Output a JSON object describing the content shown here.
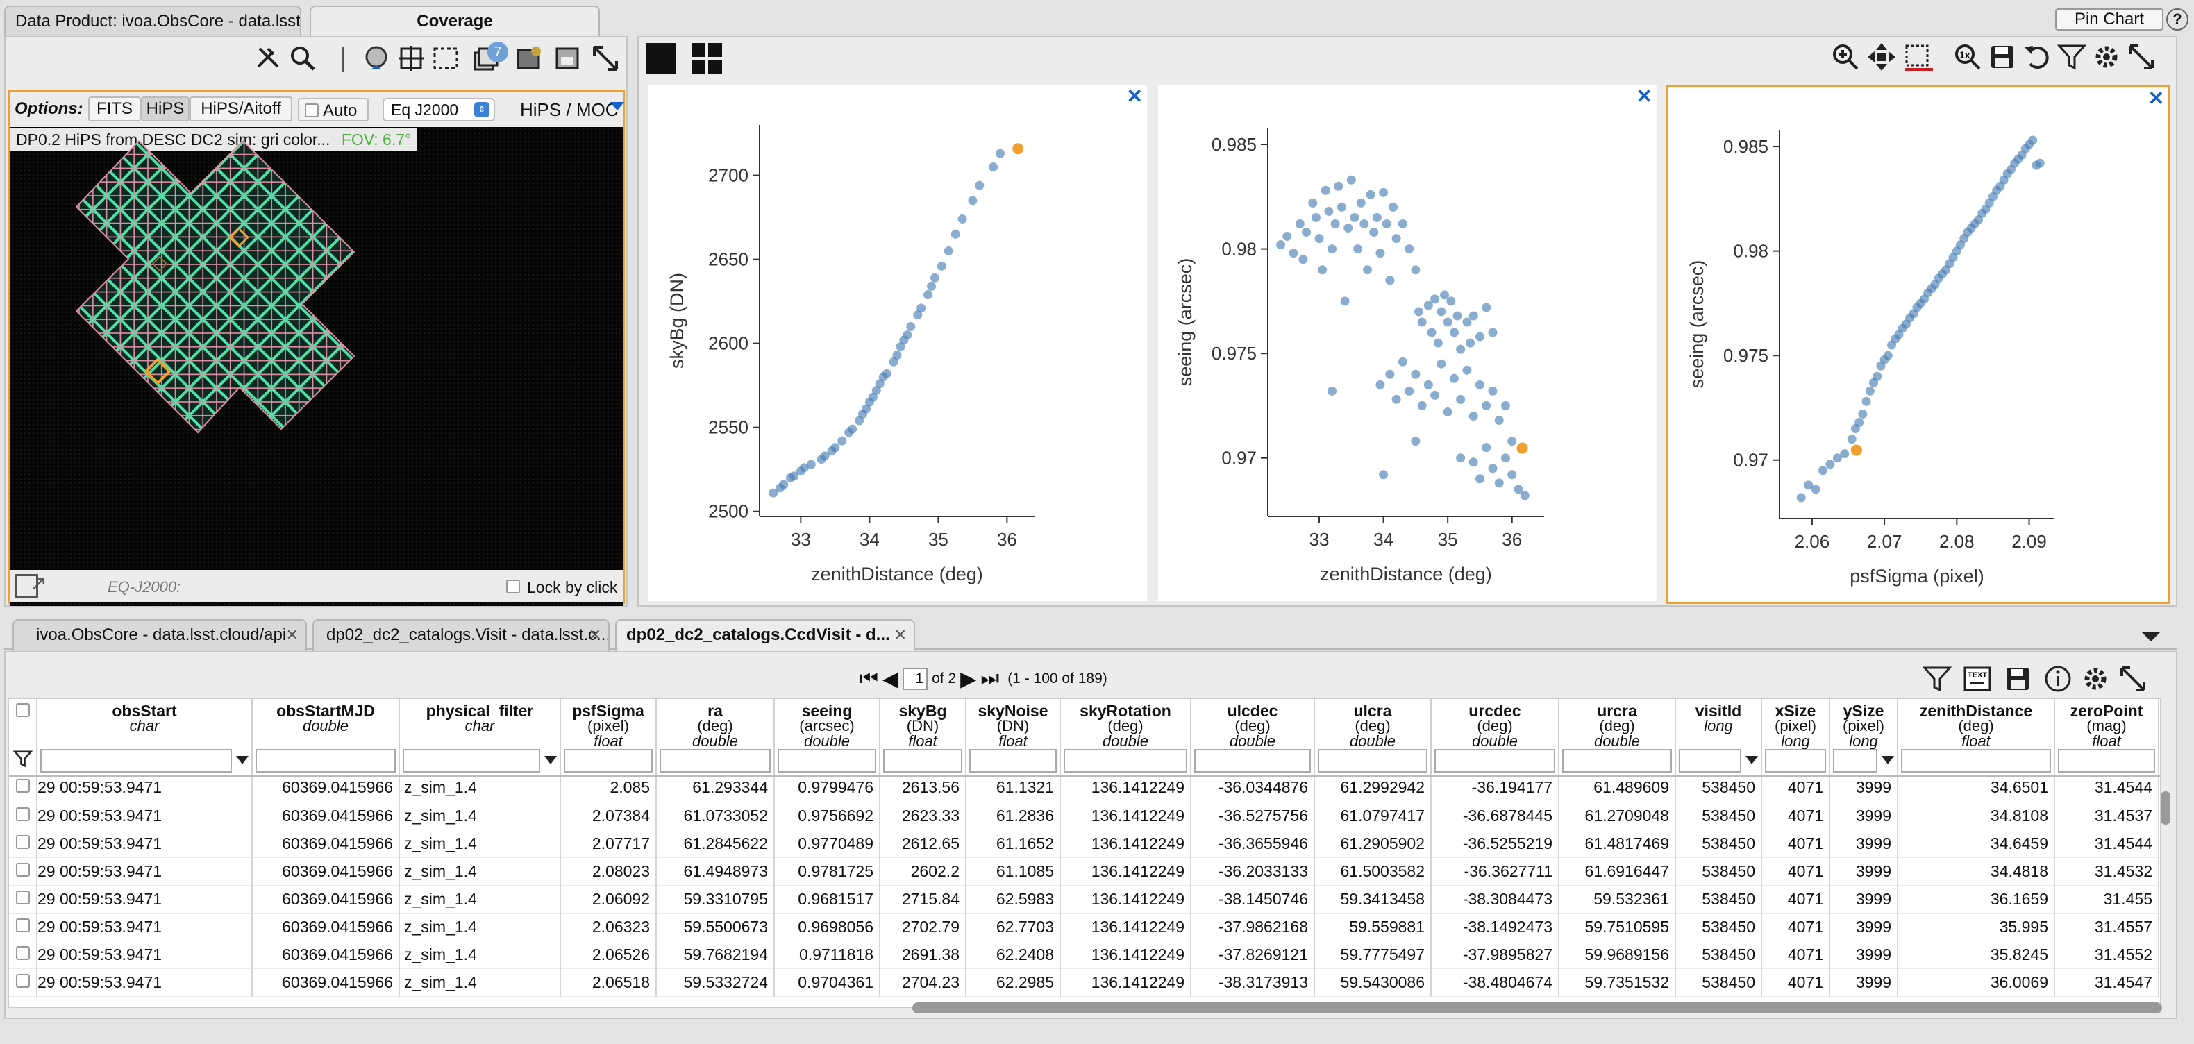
{
  "top_tabs": [
    {
      "label": "Data Product: ivoa.ObsCore - data.lsst.cloud/api"
    },
    {
      "label": "Coverage"
    }
  ],
  "top_right": {
    "pin_chart": "Pin Chart",
    "help": "?"
  },
  "coverage": {
    "options_label": "Options:",
    "option_buttons": [
      "FITS",
      "HiPS",
      "HiPS/Aitoff"
    ],
    "auto_label": "Auto",
    "projection": "Eq J2000",
    "hips_moc": "HiPS / MOC",
    "layer_title": "DP0.2 HiPS from DESC DC2 sim: gri color...",
    "fov": "FOV: 6.7°",
    "coord_label": "EQ-J2000:",
    "lock_label": "Lock by click",
    "badge": "7"
  },
  "charts": [
    {
      "chart_data": {
        "type": "scatter",
        "xlabel": "zenithDistance (deg)",
        "ylabel": "skyBg (DN)",
        "xlim": [
          32.4,
          36.4
        ],
        "ylim": [
          2497,
          2730
        ],
        "xticks": [
          33,
          34,
          35,
          36
        ],
        "yticks": [
          2500,
          2550,
          2600,
          2650,
          2700
        ],
        "ytick_labels": [
          "2500",
          "2550",
          "2600",
          "2650",
          "2700"
        ],
        "points": [
          [
            32.6,
            2511
          ],
          [
            32.7,
            2514
          ],
          [
            32.75,
            2516
          ],
          [
            32.85,
            2520
          ],
          [
            32.9,
            2521
          ],
          [
            33.0,
            2524
          ],
          [
            33.05,
            2526
          ],
          [
            33.15,
            2528
          ],
          [
            33.3,
            2531
          ],
          [
            33.35,
            2533
          ],
          [
            33.45,
            2536
          ],
          [
            33.5,
            2538
          ],
          [
            33.6,
            2542
          ],
          [
            33.7,
            2547
          ],
          [
            33.75,
            2549
          ],
          [
            33.85,
            2554
          ],
          [
            33.9,
            2558
          ],
          [
            33.95,
            2561
          ],
          [
            34.0,
            2565
          ],
          [
            34.05,
            2568
          ],
          [
            34.1,
            2572
          ],
          [
            34.15,
            2576
          ],
          [
            34.2,
            2580
          ],
          [
            34.25,
            2582
          ],
          [
            34.35,
            2589
          ],
          [
            34.4,
            2593
          ],
          [
            34.45,
            2598
          ],
          [
            34.5,
            2602
          ],
          [
            34.55,
            2605
          ],
          [
            34.6,
            2610
          ],
          [
            34.7,
            2617
          ],
          [
            34.75,
            2621
          ],
          [
            34.85,
            2629
          ],
          [
            34.9,
            2634
          ],
          [
            34.95,
            2639
          ],
          [
            35.05,
            2646
          ],
          [
            35.15,
            2655
          ],
          [
            35.25,
            2665
          ],
          [
            35.35,
            2674
          ],
          [
            35.5,
            2685
          ],
          [
            35.6,
            2694
          ],
          [
            35.8,
            2705
          ],
          [
            35.9,
            2713
          ]
        ],
        "highlight": [
          36.16,
          2715.84
        ]
      }
    },
    {
      "chart_data": {
        "type": "scatter",
        "xlabel": "zenithDistance (deg)",
        "ylabel": "seeing (arcsec)",
        "xlim": [
          32.2,
          36.5
        ],
        "ylim": [
          0.9672,
          0.9858
        ],
        "xticks": [
          33,
          34,
          35,
          36
        ],
        "yticks": [
          0.97,
          0.975,
          0.98,
          0.985
        ],
        "ytick_labels": [
          "0.97",
          "0.975",
          "0.98",
          "0.985"
        ],
        "points": [
          [
            32.4,
            0.9802
          ],
          [
            32.5,
            0.9806
          ],
          [
            32.6,
            0.9798
          ],
          [
            32.7,
            0.9812
          ],
          [
            32.75,
            0.9795
          ],
          [
            32.8,
            0.9808
          ],
          [
            32.9,
            0.9822
          ],
          [
            32.95,
            0.9815
          ],
          [
            33.0,
            0.9805
          ],
          [
            33.05,
            0.979
          ],
          [
            33.1,
            0.9828
          ],
          [
            33.15,
            0.9818
          ],
          [
            33.2,
            0.98
          ],
          [
            33.25,
            0.9812
          ],
          [
            33.3,
            0.983
          ],
          [
            33.35,
            0.982
          ],
          [
            33.4,
            0.9775
          ],
          [
            33.45,
            0.981
          ],
          [
            33.5,
            0.9833
          ],
          [
            33.55,
            0.9815
          ],
          [
            33.6,
            0.98
          ],
          [
            33.65,
            0.9822
          ],
          [
            33.7,
            0.9812
          ],
          [
            33.75,
            0.979
          ],
          [
            33.8,
            0.9826
          ],
          [
            33.85,
            0.9808
          ],
          [
            33.9,
            0.9815
          ],
          [
            33.95,
            0.9798
          ],
          [
            34.0,
            0.9827
          ],
          [
            34.05,
            0.9812
          ],
          [
            34.1,
            0.9785
          ],
          [
            34.15,
            0.982
          ],
          [
            34.2,
            0.9805
          ],
          [
            34.3,
            0.9812
          ],
          [
            34.4,
            0.98
          ],
          [
            34.5,
            0.979
          ],
          [
            34.55,
            0.977
          ],
          [
            34.6,
            0.9765
          ],
          [
            34.7,
            0.9773
          ],
          [
            34.75,
            0.976
          ],
          [
            34.8,
            0.9776
          ],
          [
            34.85,
            0.9755
          ],
          [
            34.9,
            0.977
          ],
          [
            34.95,
            0.9778
          ],
          [
            35.0,
            0.9765
          ],
          [
            35.05,
            0.9775
          ],
          [
            35.1,
            0.976
          ],
          [
            35.15,
            0.9768
          ],
          [
            35.2,
            0.9752
          ],
          [
            35.3,
            0.9765
          ],
          [
            35.35,
            0.9755
          ],
          [
            35.4,
            0.9768
          ],
          [
            35.5,
            0.9758
          ],
          [
            35.6,
            0.9772
          ],
          [
            35.7,
            0.976
          ],
          [
            33.95,
            0.9735
          ],
          [
            34.1,
            0.974
          ],
          [
            34.2,
            0.9728
          ],
          [
            34.3,
            0.9746
          ],
          [
            34.4,
            0.9732
          ],
          [
            34.5,
            0.974
          ],
          [
            34.6,
            0.9725
          ],
          [
            34.7,
            0.9735
          ],
          [
            34.8,
            0.973
          ],
          [
            34.9,
            0.9745
          ],
          [
            35.0,
            0.9722
          ],
          [
            35.1,
            0.9738
          ],
          [
            35.2,
            0.9728
          ],
          [
            35.3,
            0.9742
          ],
          [
            35.4,
            0.972
          ],
          [
            35.5,
            0.9735
          ],
          [
            35.6,
            0.9725
          ],
          [
            35.7,
            0.9732
          ],
          [
            35.8,
            0.9718
          ],
          [
            35.9,
            0.9725
          ],
          [
            36.0,
            0.9708
          ],
          [
            35.2,
            0.97
          ],
          [
            35.4,
            0.9698
          ],
          [
            35.5,
            0.969
          ],
          [
            35.6,
            0.9705
          ],
          [
            35.7,
            0.9695
          ],
          [
            35.8,
            0.9688
          ],
          [
            35.9,
            0.97
          ],
          [
            36.0,
            0.9692
          ],
          [
            36.1,
            0.9685
          ],
          [
            36.2,
            0.9682
          ],
          [
            34.0,
            0.9692
          ],
          [
            34.5,
            0.9708
          ],
          [
            33.2,
            0.9732
          ]
        ],
        "highlight": [
          36.16,
          0.97047
        ]
      }
    },
    {
      "chart_data": {
        "type": "scatter",
        "xlabel": "psfSigma (pixel)",
        "ylabel": "seeing (arcsec)",
        "xlim": [
          2.0555,
          2.0935
        ],
        "ylim": [
          0.9672,
          0.9858
        ],
        "xticks": [
          2.06,
          2.07,
          2.08,
          2.09
        ],
        "yticks": [
          0.97,
          0.975,
          0.98,
          0.985
        ],
        "ytick_labels": [
          "0.97",
          "0.975",
          "0.98",
          "0.985"
        ],
        "points": [
          [
            2.0585,
            0.9682
          ],
          [
            2.0595,
            0.9688
          ],
          [
            2.0605,
            0.9686
          ],
          [
            2.0615,
            0.9695
          ],
          [
            2.0625,
            0.9698
          ],
          [
            2.0635,
            0.9701
          ],
          [
            2.0645,
            0.9703
          ],
          [
            2.0655,
            0.971
          ],
          [
            2.066,
            0.9715
          ],
          [
            2.0665,
            0.9718
          ],
          [
            2.067,
            0.9722
          ],
          [
            2.0675,
            0.9728
          ],
          [
            2.068,
            0.9733
          ],
          [
            2.0685,
            0.9737
          ],
          [
            2.069,
            0.974
          ],
          [
            2.0695,
            0.9745
          ],
          [
            2.07,
            0.9748
          ],
          [
            2.0705,
            0.975
          ],
          [
            2.071,
            0.9755
          ],
          [
            2.0715,
            0.9758
          ],
          [
            2.072,
            0.976
          ],
          [
            2.0725,
            0.9763
          ],
          [
            2.073,
            0.9765
          ],
          [
            2.0735,
            0.9768
          ],
          [
            2.074,
            0.977
          ],
          [
            2.0745,
            0.9773
          ],
          [
            2.075,
            0.9775
          ],
          [
            2.0755,
            0.9777
          ],
          [
            2.076,
            0.978
          ],
          [
            2.0765,
            0.9782
          ],
          [
            2.077,
            0.9784
          ],
          [
            2.0775,
            0.9787
          ],
          [
            2.078,
            0.9789
          ],
          [
            2.0785,
            0.9791
          ],
          [
            2.079,
            0.9794
          ],
          [
            2.0795,
            0.9797
          ],
          [
            2.08,
            0.98
          ],
          [
            2.0805,
            0.9803
          ],
          [
            2.081,
            0.9806
          ],
          [
            2.0815,
            0.9809
          ],
          [
            2.082,
            0.9811
          ],
          [
            2.0825,
            0.9813
          ],
          [
            2.083,
            0.9815
          ],
          [
            2.0835,
            0.9818
          ],
          [
            2.084,
            0.982
          ],
          [
            2.0845,
            0.9823
          ],
          [
            2.085,
            0.9826
          ],
          [
            2.0855,
            0.9829
          ],
          [
            2.086,
            0.9831
          ],
          [
            2.0865,
            0.9834
          ],
          [
            2.087,
            0.9837
          ],
          [
            2.0875,
            0.9839
          ],
          [
            2.088,
            0.9842
          ],
          [
            2.0885,
            0.9844
          ],
          [
            2.089,
            0.9846
          ],
          [
            2.0895,
            0.9849
          ],
          [
            2.09,
            0.9851
          ],
          [
            2.0905,
            0.9853
          ],
          [
            2.091,
            0.9841
          ],
          [
            2.0915,
            0.9842
          ]
        ],
        "highlight": [
          2.06614,
          0.97047
        ]
      }
    }
  ],
  "bottom_tabs": [
    {
      "label": "ivoa.ObsCore - data.lsst.cloud/api"
    },
    {
      "label": "dp02_dc2_catalogs.Visit - data.lsst.c..."
    },
    {
      "label": "dp02_dc2_catalogs.CcdVisit - d..."
    }
  ],
  "paging": {
    "page": "1",
    "of": "of 2",
    "range": "(1 - 100 of 189)"
  },
  "table": {
    "columns": [
      {
        "name": "obsStart",
        "unit": "",
        "type": "char"
      },
      {
        "name": "obsStartMJD",
        "unit": "",
        "type": "double"
      },
      {
        "name": "physical_filter",
        "unit": "",
        "type": "char"
      },
      {
        "name": "psfSigma",
        "unit": "(pixel)",
        "type": "float"
      },
      {
        "name": "ra",
        "unit": "(deg)",
        "type": "double"
      },
      {
        "name": "seeing",
        "unit": "(arcsec)",
        "type": "double"
      },
      {
        "name": "skyBg",
        "unit": "(DN)",
        "type": "float"
      },
      {
        "name": "skyNoise",
        "unit": "(DN)",
        "type": "float"
      },
      {
        "name": "skyRotation",
        "unit": "(deg)",
        "type": "double"
      },
      {
        "name": "ulcdec",
        "unit": "(deg)",
        "type": "double"
      },
      {
        "name": "ulcra",
        "unit": "(deg)",
        "type": "double"
      },
      {
        "name": "urcdec",
        "unit": "(deg)",
        "type": "double"
      },
      {
        "name": "urcra",
        "unit": "(deg)",
        "type": "double"
      },
      {
        "name": "visitId",
        "unit": "",
        "type": "long"
      },
      {
        "name": "xSize",
        "unit": "(pixel)",
        "type": "long"
      },
      {
        "name": "ySize",
        "unit": "(pixel)",
        "type": "long"
      },
      {
        "name": "zenithDistance",
        "unit": "(deg)",
        "type": "float"
      },
      {
        "name": "zeroPoint",
        "unit": "(mag)",
        "type": "float"
      }
    ],
    "rows": [
      [
        "29 00:59:53.9471",
        "60369.0415966",
        "z_sim_1.4",
        "2.085",
        "61.293344",
        "0.9799476",
        "2613.56",
        "61.1321",
        "136.1412249",
        "-36.0344876",
        "61.2992942",
        "-36.194177",
        "61.489609",
        "538450",
        "4071",
        "3999",
        "34.6501",
        "31.4544"
      ],
      [
        "29 00:59:53.9471",
        "60369.0415966",
        "z_sim_1.4",
        "2.07384",
        "61.0733052",
        "0.9756692",
        "2623.33",
        "61.2836",
        "136.1412249",
        "-36.5275756",
        "61.0797417",
        "-36.6878445",
        "61.2709048",
        "538450",
        "4071",
        "3999",
        "34.8108",
        "31.4537"
      ],
      [
        "29 00:59:53.9471",
        "60369.0415966",
        "z_sim_1.4",
        "2.07717",
        "61.2845622",
        "0.9770489",
        "2612.65",
        "61.1652",
        "136.1412249",
        "-36.3655946",
        "61.2905902",
        "-36.5255219",
        "61.4817469",
        "538450",
        "4071",
        "3999",
        "34.6459",
        "31.4544"
      ],
      [
        "29 00:59:53.9471",
        "60369.0415966",
        "z_sim_1.4",
        "2.08023",
        "61.4948973",
        "0.9781725",
        "2602.2",
        "61.1085",
        "136.1412249",
        "-36.2033133",
        "61.5003582",
        "-36.3627711",
        "61.6916447",
        "538450",
        "4071",
        "3999",
        "34.4818",
        "31.4532"
      ],
      [
        "29 00:59:53.9471",
        "60369.0415966",
        "z_sim_1.4",
        "2.06092",
        "59.3310795",
        "0.9681517",
        "2715.84",
        "62.5983",
        "136.1412249",
        "-38.1450746",
        "59.3413458",
        "-38.3084473",
        "59.532361",
        "538450",
        "4071",
        "3999",
        "36.1659",
        "31.455"
      ],
      [
        "29 00:59:53.9471",
        "60369.0415966",
        "z_sim_1.4",
        "2.06323",
        "59.5500673",
        "0.9698056",
        "2702.79",
        "62.7703",
        "136.1412249",
        "-37.9862168",
        "59.559881",
        "-38.1492473",
        "59.7510595",
        "538450",
        "4071",
        "3999",
        "35.995",
        "31.4557"
      ],
      [
        "29 00:59:53.9471",
        "60369.0415966",
        "z_sim_1.4",
        "2.06526",
        "59.7682194",
        "0.9711818",
        "2691.38",
        "62.2408",
        "136.1412249",
        "-37.8269121",
        "59.7775497",
        "-37.9895827",
        "59.9689156",
        "538450",
        "4071",
        "3999",
        "35.8245",
        "31.4552"
      ],
      [
        "29 00:59:53.9471",
        "60369.0415966",
        "z_sim_1.4",
        "2.06518",
        "59.5332724",
        "0.9704361",
        "2704.23",
        "62.2985",
        "136.1412249",
        "-38.3173913",
        "59.5430086",
        "-38.4804674",
        "59.7351532",
        "538450",
        "4071",
        "3999",
        "36.0069",
        "31.4547"
      ]
    ]
  },
  "colors": {
    "accent": "#f0a030",
    "point": "#4a7fb5",
    "highlight": "#f0a030",
    "link": "#1460c8"
  }
}
